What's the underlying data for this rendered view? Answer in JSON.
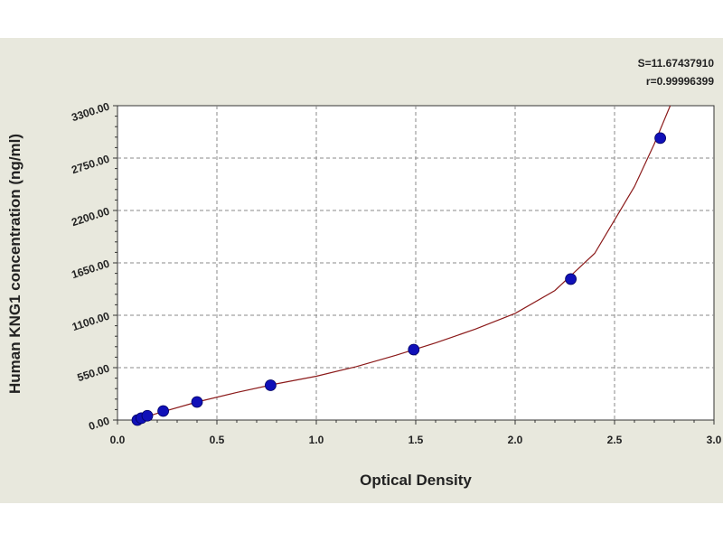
{
  "chart_data": {
    "type": "scatter",
    "xlabel": "Optical Density",
    "ylabel": "Human KNG1 concentration (ng/ml)",
    "xlim": [
      0,
      3.0
    ],
    "ylim": [
      0,
      3300
    ],
    "x_ticks": [
      "0.0",
      "0.5",
      "1.0",
      "1.5",
      "2.0",
      "2.5",
      "3.0"
    ],
    "y_ticks": [
      "0.00",
      "550.00",
      "1100.00",
      "1650.00",
      "2200.00",
      "2750.00",
      "3300.00"
    ],
    "grid": true,
    "stats": [
      "S=11.67437910",
      "r=0.99996399"
    ],
    "points": [
      {
        "x": 0.1,
        "y": 0
      },
      {
        "x": 0.12,
        "y": 20
      },
      {
        "x": 0.15,
        "y": 45
      },
      {
        "x": 0.23,
        "y": 95
      },
      {
        "x": 0.4,
        "y": 190
      },
      {
        "x": 0.77,
        "y": 365
      },
      {
        "x": 1.49,
        "y": 740
      },
      {
        "x": 2.28,
        "y": 1480
      },
      {
        "x": 2.73,
        "y": 2960
      }
    ],
    "curve": {
      "x": [
        0.08,
        0.2,
        0.4,
        0.6,
        0.8,
        1.0,
        1.2,
        1.4,
        1.6,
        1.8,
        2.0,
        2.2,
        2.4,
        2.6,
        2.7,
        2.78
      ],
      "y": [
        -10,
        70,
        190,
        290,
        380,
        460,
        560,
        680,
        810,
        955,
        1120,
        1360,
        1750,
        2450,
        2900,
        3300
      ]
    },
    "colors": {
      "point": "#1010b8",
      "curve": "#8b1a1a",
      "grid": "#8a8a8a",
      "background": "#e8e8dd"
    }
  }
}
